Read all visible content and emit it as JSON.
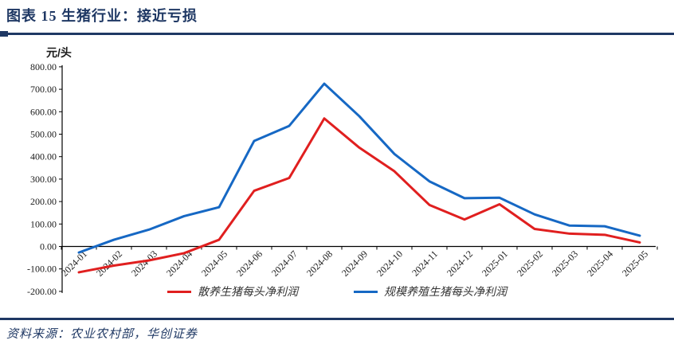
{
  "header": {
    "title": "图表 15  生猪行业：接近亏损"
  },
  "footer": {
    "source": "资料来源：农业农村部，华创证券"
  },
  "colors": {
    "navy": "#1f3864",
    "red": "#e01f1f",
    "blue": "#1668c4",
    "axis": "#000000"
  },
  "chart_data": {
    "type": "line",
    "unit_label": "元/头",
    "categories": [
      "2024-01",
      "2024-02",
      "2024-03",
      "2024-04",
      "2024-05",
      "2024-06",
      "2024-07",
      "2024-08",
      "2024-09",
      "2024-10",
      "2024-11",
      "2024-12",
      "2025-01",
      "2025-02",
      "2025-03",
      "2025-04",
      "2025-05"
    ],
    "series": [
      {
        "name": "散养生猪每头净利润",
        "color_key": "red",
        "values": [
          -115,
          -85,
          -62,
          -30,
          30,
          248,
          305,
          570,
          440,
          335,
          185,
          120,
          188,
          78,
          57,
          52,
          18
        ]
      },
      {
        "name": "规模养殖生猪每头净利润",
        "color_key": "blue",
        "values": [
          -27,
          30,
          75,
          135,
          175,
          470,
          537,
          725,
          580,
          412,
          290,
          215,
          217,
          143,
          93,
          90,
          48
        ]
      }
    ],
    "ylim": [
      -200,
      800
    ],
    "ytick_step": 100,
    "ytick_labels": [
      "800.00",
      "700.00",
      "600.00",
      "500.00",
      "400.00",
      "300.00",
      "200.00",
      "100.00",
      "0.00",
      "-100.00",
      "-200.00"
    ],
    "grid": false,
    "legend_position": "bottom"
  }
}
